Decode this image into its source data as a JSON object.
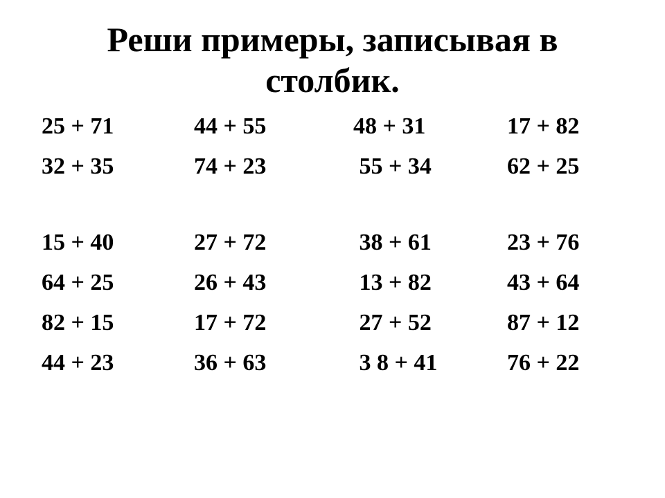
{
  "title_line1": "Реши примеры, записывая в",
  "title_line2": "столбик.",
  "background_color": "#ffffff",
  "text_color": "#000000",
  "font_family": "Times New Roman",
  "title_fontsize_pt": 38,
  "cell_fontsize_pt": 26,
  "font_weight": "bold",
  "grid": {
    "columns": 4,
    "row_gap_after_index": 1,
    "rows": [
      [
        "25 + 71",
        "44 + 55",
        "48 + 31",
        "17 + 82"
      ],
      [
        "32 + 35",
        "74 + 23",
        " 55 + 34",
        "62 + 25"
      ],
      [
        "15 + 40",
        "27 + 72",
        " 38 + 61",
        "23 + 76"
      ],
      [
        "64 + 25",
        "26 + 43",
        " 13 + 82",
        "43 + 64"
      ],
      [
        "82 + 15",
        "17 + 72",
        " 27 + 52",
        "87 + 12"
      ],
      [
        "44 + 23",
        "36 + 63",
        " 3 8 + 41",
        "76 + 22"
      ]
    ]
  }
}
